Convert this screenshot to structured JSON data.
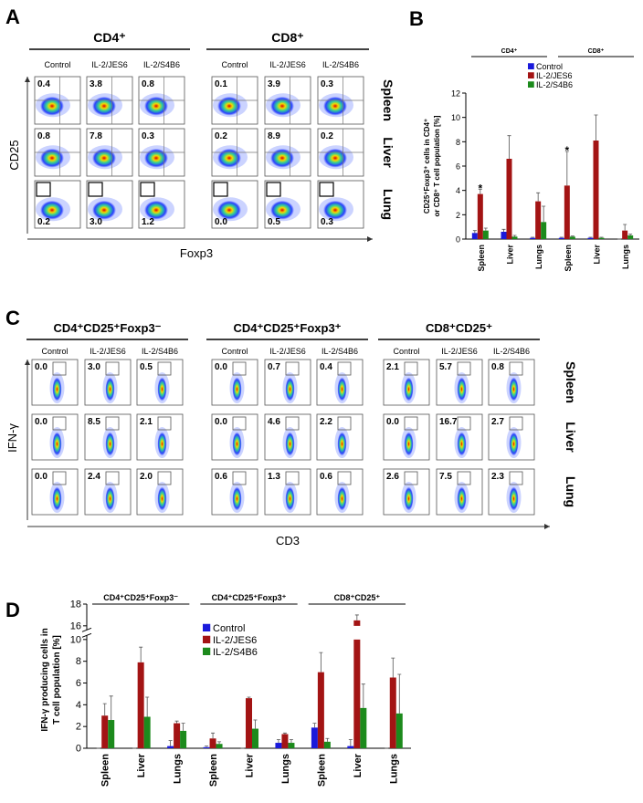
{
  "panel_a": {
    "label": "A",
    "rows": [
      "Spleen",
      "Liver",
      "Lung"
    ],
    "y_axis": "CD25",
    "x_axis": "Foxp3",
    "groups": [
      {
        "title": "CD4⁺",
        "columns": [
          "Control",
          "IL-2/JES6",
          "IL-2/S4B6"
        ],
        "values": [
          [
            "0.4",
            "3.8",
            "0.8"
          ],
          [
            "0.8",
            "7.8",
            "0.3"
          ],
          [
            "0.2",
            "3.0",
            "1.2"
          ]
        ]
      },
      {
        "title": "CD8⁺",
        "columns": [
          "Control",
          "IL-2/JES6",
          "IL-2/S4B6"
        ],
        "values": [
          [
            "0.1",
            "3.9",
            "0.3"
          ],
          [
            "0.2",
            "8.9",
            "0.2"
          ],
          [
            "0.0",
            "0.5",
            "0.3"
          ]
        ]
      }
    ]
  },
  "panel_c": {
    "label": "C",
    "rows": [
      "Spleen",
      "Liver",
      "Lung"
    ],
    "y_axis": "IFN-γ",
    "x_axis": "CD3",
    "groups": [
      {
        "title": "CD4⁺CD25⁺Foxp3⁻",
        "columns": [
          "Control",
          "IL-2/JES6",
          "IL-2/S4B6"
        ],
        "values": [
          [
            "0.0",
            "3.0",
            "0.5"
          ],
          [
            "0.0",
            "8.5",
            "2.1"
          ],
          [
            "0.0",
            "2.4",
            "2.0"
          ]
        ]
      },
      {
        "title": "CD4⁺CD25⁺Foxp3⁺",
        "columns": [
          "Control",
          "IL-2/JES6",
          "IL-2/S4B6"
        ],
        "values": [
          [
            "0.0",
            "0.7",
            "0.4"
          ],
          [
            "0.0",
            "4.6",
            "2.2"
          ],
          [
            "0.6",
            "1.3",
            "0.6"
          ]
        ]
      },
      {
        "title": "CD8⁺CD25⁺",
        "columns": [
          "Control",
          "IL-2/JES6",
          "IL-2/S4B6"
        ],
        "values": [
          [
            "2.1",
            "5.7",
            "0.8"
          ],
          [
            "0.0",
            "16.7",
            "2.7"
          ],
          [
            "2.6",
            "7.5",
            "2.3"
          ]
        ]
      }
    ]
  },
  "chart_data": [
    {
      "label": "B",
      "type": "bar",
      "groups": [
        "CD4⁺",
        "CD8⁺"
      ],
      "categories": [
        "Spleen",
        "Liver",
        "Lungs",
        "Spleen",
        "Liver",
        "Lungs"
      ],
      "series": [
        {
          "name": "Control",
          "color": "#1a1adb",
          "values": [
            0.5,
            0.6,
            0.1,
            0.1,
            0.1,
            0
          ],
          "errors": [
            0.2,
            0.2,
            0.05,
            0.05,
            0.05,
            0
          ]
        },
        {
          "name": "IL-2/JES6",
          "color": "#a31414",
          "values": [
            3.7,
            6.6,
            3.1,
            4.4,
            8.1,
            0.7
          ],
          "errors": [
            0.4,
            1.9,
            0.7,
            2.8,
            2.1,
            0.5
          ]
        },
        {
          "name": "IL-2/S4B6",
          "color": "#1c8a1c",
          "values": [
            0.7,
            0.2,
            1.4,
            0.2,
            0.1,
            0.3
          ],
          "errors": [
            0.2,
            0.1,
            1.3,
            0.05,
            0.05,
            0.1
          ]
        }
      ],
      "ylim": [
        0,
        12
      ],
      "yticks": [
        0,
        2,
        4,
        6,
        8,
        10,
        12
      ],
      "y_label": [
        "CD25⁺Foxp3⁺ cells in CD4⁺",
        "or CD8⁺ T cell population [%]"
      ],
      "annotations": [
        {
          "text": "*",
          "series": 1,
          "index": 0
        },
        {
          "text": "*",
          "series": 1,
          "index": 3
        }
      ]
    },
    {
      "label": "D",
      "type": "bar",
      "groups": [
        "CD4⁺CD25⁺Foxp3⁻",
        "CD4⁺CD25⁺Foxp3⁺",
        "CD8⁺CD25⁺"
      ],
      "categories": [
        "Spleen",
        "Liver",
        "Lungs",
        "Spleen",
        "Liver",
        "Lungs",
        "Spleen",
        "Liver",
        "Lungs"
      ],
      "series": [
        {
          "name": "Control",
          "color": "#1a1adb",
          "values": [
            0,
            0,
            0.2,
            0.1,
            0,
            0.5,
            1.9,
            0.2,
            0
          ],
          "errors": [
            0,
            0,
            0.5,
            0.1,
            0,
            0.3,
            0.4,
            0.6,
            0
          ]
        },
        {
          "name": "IL-2/JES6",
          "color": "#a31414",
          "values": [
            3.0,
            7.9,
            2.3,
            0.9,
            4.6,
            1.3,
            7.0,
            16.5,
            6.5
          ],
          "errors": [
            1.1,
            1.4,
            0.2,
            0.5,
            0.1,
            0.1,
            1.8,
            0.5,
            1.8
          ]
        },
        {
          "name": "IL-2/S4B6",
          "color": "#1c8a1c",
          "values": [
            2.6,
            2.9,
            1.6,
            0.4,
            1.8,
            0.5,
            0.6,
            3.7,
            3.2
          ],
          "errors": [
            2.2,
            1.8,
            0.7,
            0.2,
            0.8,
            0.3,
            0.3,
            2.2,
            3.6
          ]
        }
      ],
      "ylim": [
        0,
        18
      ],
      "yticks": [
        0,
        2,
        4,
        6,
        8,
        10,
        16,
        18
      ],
      "axis_break": [
        10,
        16
      ],
      "y_label": [
        "IFN-γ producing cells in",
        "T cell population [%]"
      ]
    }
  ]
}
